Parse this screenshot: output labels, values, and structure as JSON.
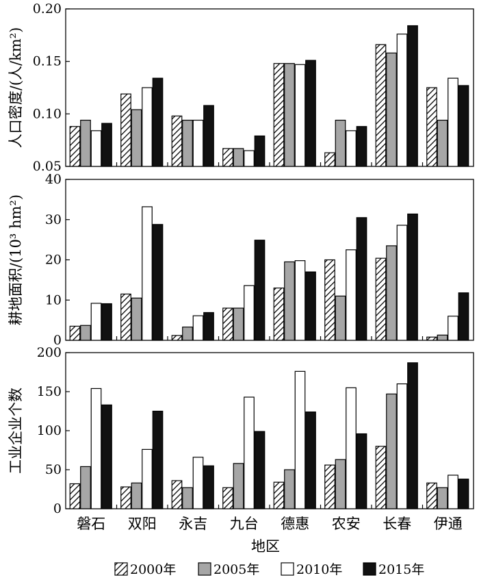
{
  "chart_data": [
    {
      "type": "bar",
      "ylabel": "人口密度/(人/km²)",
      "ylim": [
        0.05,
        0.2
      ],
      "yticks": [
        "0.05",
        "0.10",
        "0.15",
        "0.20"
      ],
      "categories": [
        "磐石",
        "双阳",
        "永吉",
        "九台",
        "德惠",
        "农安",
        "长春",
        "伊通"
      ],
      "series": [
        {
          "name": "2000年",
          "values": [
            0.088,
            0.119,
            0.098,
            0.067,
            0.148,
            0.063,
            0.166,
            0.125
          ]
        },
        {
          "name": "2005年",
          "values": [
            0.094,
            0.104,
            0.094,
            0.067,
            0.148,
            0.094,
            0.158,
            0.094
          ]
        },
        {
          "name": "2010年",
          "values": [
            0.084,
            0.125,
            0.094,
            0.065,
            0.147,
            0.084,
            0.176,
            0.134
          ]
        },
        {
          "name": "2015年",
          "values": [
            0.091,
            0.134,
            0.108,
            0.079,
            0.151,
            0.088,
            0.184,
            0.127
          ]
        }
      ]
    },
    {
      "type": "bar",
      "ylabel": "耕地面积/(10³ hm²)",
      "ylim": [
        0,
        40
      ],
      "yticks": [
        "0",
        "10",
        "20",
        "30",
        "40"
      ],
      "categories": [
        "磐石",
        "双阳",
        "永吉",
        "九台",
        "德惠",
        "农安",
        "长春",
        "伊通"
      ],
      "series": [
        {
          "name": "2000年",
          "values": [
            3.5,
            11.5,
            1.2,
            8.0,
            13.0,
            20.0,
            20.4,
            0.8
          ]
        },
        {
          "name": "2005年",
          "values": [
            3.7,
            10.5,
            3.3,
            8.0,
            19.5,
            11.0,
            23.5,
            1.3
          ]
        },
        {
          "name": "2010年",
          "values": [
            9.2,
            33.2,
            6.1,
            13.6,
            19.8,
            22.5,
            28.6,
            6.0
          ]
        },
        {
          "name": "2015年",
          "values": [
            9.1,
            28.8,
            6.9,
            24.9,
            17.0,
            30.5,
            31.4,
            11.8
          ]
        }
      ]
    },
    {
      "type": "bar",
      "ylabel": "工业企业个数",
      "xlabel": "地区",
      "ylim": [
        0,
        200
      ],
      "yticks": [
        "0",
        "50",
        "100",
        "150",
        "200"
      ],
      "categories": [
        "磐石",
        "双阳",
        "永吉",
        "九台",
        "德惠",
        "农安",
        "长春",
        "伊通"
      ],
      "series": [
        {
          "name": "2000年",
          "values": [
            32,
            28,
            36,
            27,
            34,
            56,
            80,
            33
          ]
        },
        {
          "name": "2005年",
          "values": [
            54,
            33,
            27,
            58,
            50,
            63,
            147,
            27
          ]
        },
        {
          "name": "2010年",
          "values": [
            154,
            76,
            66,
            143,
            176,
            155,
            160,
            43
          ]
        },
        {
          "name": "2015年",
          "values": [
            133,
            125,
            55,
            99,
            124,
            96,
            187,
            38
          ]
        }
      ]
    }
  ],
  "legend": [
    "2000年",
    "2005年",
    "2010年",
    "2015年"
  ],
  "series_styles": [
    {
      "fill": "url(#hatch)"
    },
    {
      "fill": "#a6a6a6"
    },
    {
      "fill": "#ffffff"
    },
    {
      "fill": "#111111"
    }
  ]
}
